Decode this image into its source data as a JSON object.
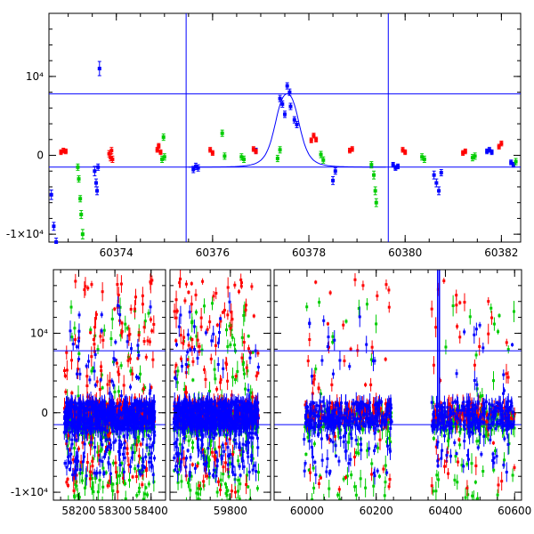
{
  "chart_data": [
    {
      "type": "scatter",
      "panel": "top",
      "xlim": [
        60372.6,
        60382.4
      ],
      "ylim": [
        -11000,
        18000
      ],
      "y_ticks": [
        {
          "value": 10000,
          "label": "10⁴"
        },
        {
          "value": 0,
          "label": "0"
        },
        {
          "value": -10000,
          "label": "-1×10⁴"
        }
      ],
      "x_ticks": [
        {
          "value": 60374,
          "label": "60374"
        },
        {
          "value": 60376,
          "label": "60376"
        },
        {
          "value": 60378,
          "label": "60378"
        },
        {
          "value": 60380,
          "label": "60380"
        },
        {
          "value": 60382,
          "label": "60382"
        }
      ],
      "hlines": [
        7800,
        -1500
      ],
      "vlines": [
        60375.45,
        60379.65
      ],
      "model_curve": {
        "peak_x": 60377.55,
        "peak_y": 7800,
        "baseline": -1500,
        "width": 0.32,
        "x_range": [
          60375.5,
          60379.6
        ]
      },
      "series": [
        {
          "color": "#0000ff",
          "points": [
            [
              60372.65,
              -5000,
              600
            ],
            [
              60372.7,
              -9000,
              500
            ],
            [
              60372.75,
              -11000,
              500
            ],
            [
              60373.55,
              -2000,
              600
            ],
            [
              60373.58,
              -3500,
              500
            ],
            [
              60373.6,
              -4500,
              500
            ],
            [
              60373.62,
              -1500,
              400
            ],
            [
              60373.65,
              11000,
              900
            ],
            [
              60375.6,
              -1800,
              400
            ],
            [
              60375.65,
              -1400,
              400
            ],
            [
              60375.7,
              -1600,
              400
            ],
            [
              60376.9,
              600,
              300
            ],
            [
              60377.4,
              7200,
              400
            ],
            [
              60377.45,
              6500,
              400
            ],
            [
              60377.5,
              5200,
              400
            ],
            [
              60377.55,
              8800,
              400
            ],
            [
              60377.6,
              8000,
              400
            ],
            [
              60377.62,
              6200,
              400
            ],
            [
              60377.7,
              4500,
              400
            ],
            [
              60377.75,
              3900,
              400
            ],
            [
              60378.5,
              -3200,
              500
            ],
            [
              60378.55,
              -2000,
              400
            ],
            [
              60379.75,
              -1200,
              300
            ],
            [
              60379.8,
              -1600,
              300
            ],
            [
              60379.85,
              -1400,
              300
            ],
            [
              60380.6,
              -2500,
              500
            ],
            [
              60380.65,
              -3500,
              500
            ],
            [
              60380.7,
              -4500,
              500
            ],
            [
              60380.75,
              -2200,
              400
            ],
            [
              60381.7,
              500,
              300
            ],
            [
              60381.75,
              700,
              300
            ],
            [
              60381.8,
              400,
              300
            ],
            [
              60382.2,
              -900,
              300
            ],
            [
              60382.25,
              -1200,
              300
            ]
          ]
        },
        {
          "color": "#ff0000",
          "points": [
            [
              60372.85,
              400,
              300
            ],
            [
              60372.9,
              600,
              300
            ],
            [
              60372.95,
              500,
              300
            ],
            [
              60373.85,
              200,
              400
            ],
            [
              60373.88,
              -300,
              400
            ],
            [
              60373.9,
              600,
              400
            ],
            [
              60373.92,
              -500,
              400
            ],
            [
              60374.85,
              700,
              300
            ],
            [
              60374.88,
              1200,
              300
            ],
            [
              60374.92,
              400,
              300
            ],
            [
              60375.95,
              700,
              300
            ],
            [
              60376.0,
              300,
              300
            ],
            [
              60376.85,
              800,
              300
            ],
            [
              60376.9,
              500,
              300
            ],
            [
              60378.05,
              1900,
              300
            ],
            [
              60378.1,
              2500,
              300
            ],
            [
              60378.15,
              2000,
              300
            ],
            [
              60378.85,
              600,
              300
            ],
            [
              60378.9,
              800,
              300
            ],
            [
              60379.95,
              700,
              300
            ],
            [
              60380.0,
              400,
              300
            ],
            [
              60381.2,
              300,
              300
            ],
            [
              60381.25,
              500,
              300
            ],
            [
              60381.95,
              1100,
              300
            ],
            [
              60382.0,
              1500,
              300
            ]
          ]
        },
        {
          "color": "#00cc00",
          "points": [
            [
              60373.2,
              -1500,
              400
            ],
            [
              60373.22,
              -3000,
              400
            ],
            [
              60373.25,
              -5500,
              400
            ],
            [
              60373.27,
              -7500,
              500
            ],
            [
              60373.3,
              -10000,
              600
            ],
            [
              60374.95,
              -500,
              400
            ],
            [
              60374.98,
              2300,
              400
            ],
            [
              60375.0,
              -200,
              400
            ],
            [
              60376.2,
              2800,
              400
            ],
            [
              60376.25,
              -100,
              400
            ],
            [
              60376.6,
              -200,
              400
            ],
            [
              60376.65,
              -500,
              400
            ],
            [
              60377.35,
              -400,
              400
            ],
            [
              60377.4,
              700,
              400
            ],
            [
              60378.25,
              100,
              400
            ],
            [
              60378.3,
              -600,
              400
            ],
            [
              60379.3,
              -1200,
              400
            ],
            [
              60379.35,
              -2500,
              500
            ],
            [
              60379.38,
              -4500,
              500
            ],
            [
              60379.4,
              -6000,
              500
            ],
            [
              60380.35,
              -200,
              400
            ],
            [
              60380.4,
              -500,
              400
            ],
            [
              60381.4,
              -300,
              400
            ],
            [
              60381.45,
              -100,
              400
            ],
            [
              60382.3,
              -800,
              400
            ]
          ]
        }
      ]
    },
    {
      "type": "scatter",
      "panel": "bottom",
      "ylim": [
        -11000,
        18000
      ],
      "y_ticks": [
        {
          "value": 10000,
          "label": "10⁴"
        },
        {
          "value": 0,
          "label": "0"
        },
        {
          "value": -10000,
          "label": "-1×10⁴"
        }
      ],
      "hlines": [
        7800,
        -1500
      ],
      "segments": [
        {
          "xlim": [
            58130,
            58440
          ],
          "x_ticks": [
            {
              "value": 58200,
              "label": "58200"
            },
            {
              "value": 58300,
              "label": "58300"
            },
            {
              "value": 58400,
              "label": "58400"
            }
          ],
          "data_range": [
            58160,
            58410
          ],
          "gaps": [],
          "peak": null
        },
        {
          "xlim": [
            59650,
            59900
          ],
          "x_ticks": [
            {
              "value": 59800,
              "label": "59800"
            }
          ],
          "data_range": [
            59660,
            59870
          ],
          "gaps": [],
          "peak": null
        },
        {
          "xlim": [
            59905,
            60620
          ],
          "x_ticks": [
            {
              "value": 60000,
              "label": "60000"
            },
            {
              "value": 60200,
              "label": "60200"
            },
            {
              "value": 60400,
              "label": "60400"
            },
            {
              "value": 60600,
              "label": "60600"
            }
          ],
          "data_range": [
            59990,
            60600
          ],
          "gaps": [
            [
              60245,
              60360
            ]
          ],
          "peak": 60377.6
        }
      ]
    }
  ]
}
